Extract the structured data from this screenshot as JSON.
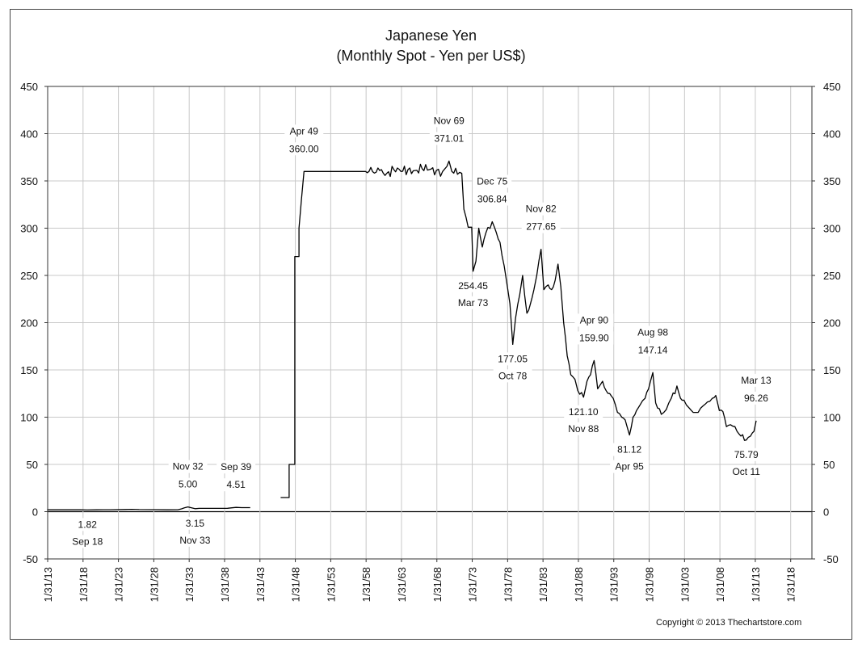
{
  "chart_data": {
    "type": "line",
    "title": "Japanese Yen",
    "subtitle": "(Monthly Spot - Yen per US$)",
    "xlabel": "",
    "ylabel": "",
    "ylim": [
      -50,
      450
    ],
    "y_ticks": [
      -50,
      0,
      50,
      100,
      150,
      200,
      250,
      300,
      350,
      400,
      450
    ],
    "x_range": [
      1913.08,
      2021.08
    ],
    "x_ticks": [
      {
        "year": 1913.08,
        "label": "1/31/13"
      },
      {
        "year": 1918.08,
        "label": "1/31/18"
      },
      {
        "year": 1923.08,
        "label": "1/31/23"
      },
      {
        "year": 1928.08,
        "label": "1/31/28"
      },
      {
        "year": 1933.08,
        "label": "1/31/33"
      },
      {
        "year": 1938.08,
        "label": "1/31/38"
      },
      {
        "year": 1943.08,
        "label": "1/31/43"
      },
      {
        "year": 1948.08,
        "label": "1/31/48"
      },
      {
        "year": 1953.08,
        "label": "1/31/53"
      },
      {
        "year": 1958.08,
        "label": "1/31/58"
      },
      {
        "year": 1963.08,
        "label": "1/31/63"
      },
      {
        "year": 1968.08,
        "label": "1/31/68"
      },
      {
        "year": 1973.08,
        "label": "1/31/73"
      },
      {
        "year": 1978.08,
        "label": "1/31/78"
      },
      {
        "year": 1983.08,
        "label": "1/31/83"
      },
      {
        "year": 1988.08,
        "label": "1/31/88"
      },
      {
        "year": 1993.08,
        "label": "1/31/93"
      },
      {
        "year": 1998.08,
        "label": "1/31/98"
      },
      {
        "year": 2003.08,
        "label": "1/31/03"
      },
      {
        "year": 2008.08,
        "label": "1/31/08"
      },
      {
        "year": 2013.08,
        "label": "1/31/13"
      },
      {
        "year": 2018.08,
        "label": "1/31/18"
      }
    ],
    "grid": true,
    "legend": "none",
    "series": [
      {
        "name": "Yen per US$",
        "color": "#000000",
        "segments": [
          [
            [
              1913.0,
              2.0
            ],
            [
              1917.7,
              1.95
            ],
            [
              1918.7,
              1.82
            ],
            [
              1920.0,
              1.95
            ],
            [
              1922.0,
              2.05
            ],
            [
              1924.0,
              2.3
            ],
            [
              1925.0,
              2.5
            ],
            [
              1926.0,
              2.2
            ],
            [
              1928.0,
              2.1
            ],
            [
              1930.0,
              2.0
            ],
            [
              1931.5,
              2.05
            ],
            [
              1932.0,
              3.0
            ],
            [
              1932.4,
              4.0
            ],
            [
              1932.9,
              5.0
            ],
            [
              1933.3,
              4.3
            ],
            [
              1933.9,
              3.15
            ],
            [
              1934.5,
              3.5
            ],
            [
              1935.5,
              3.5
            ],
            [
              1937.0,
              3.5
            ],
            [
              1938.5,
              3.6
            ],
            [
              1939.0,
              4.0
            ],
            [
              1939.7,
              4.51
            ],
            [
              1940.5,
              4.27
            ],
            [
              1941.7,
              4.27
            ]
          ],
          [
            [
              1946.0,
              15.0
            ],
            [
              1947.2,
              15.0
            ],
            [
              1947.2,
              50.0
            ],
            [
              1948.0,
              50.0
            ],
            [
              1948.0,
              270.0
            ],
            [
              1948.6,
              270.0
            ],
            [
              1948.6,
              300.0
            ],
            [
              1949.3,
              360.0
            ],
            [
              1958.0,
              360.0
            ],
            [
              1960.0,
              361.0
            ],
            [
              1961.0,
              358.0
            ],
            [
              1962.0,
              362.0
            ],
            [
              1963.0,
              360.0
            ],
            [
              1964.0,
              362.0
            ],
            [
              1965.0,
              361.0
            ],
            [
              1966.0,
              363.0
            ],
            [
              1967.0,
              362.0
            ],
            [
              1968.0,
              361.0
            ],
            [
              1968.9,
              360.0
            ],
            [
              1969.8,
              371.01
            ],
            [
              1970.2,
              360.0
            ],
            [
              1971.0,
              357.0
            ],
            [
              1971.6,
              358.0
            ],
            [
              1971.9,
              320.0
            ],
            [
              1972.5,
              301.0
            ],
            [
              1973.0,
              301.0
            ],
            [
              1973.2,
              254.45
            ],
            [
              1973.6,
              265.0
            ],
            [
              1974.0,
              300.0
            ],
            [
              1974.5,
              280.0
            ],
            [
              1975.0,
              295.0
            ],
            [
              1975.9,
              306.84
            ],
            [
              1976.5,
              295.0
            ],
            [
              1977.0,
              285.0
            ],
            [
              1977.6,
              260.0
            ],
            [
              1978.0,
              240.0
            ],
            [
              1978.4,
              220.0
            ],
            [
              1978.8,
              177.05
            ],
            [
              1979.2,
              205.0
            ],
            [
              1979.8,
              230.0
            ],
            [
              1980.2,
              250.0
            ],
            [
              1980.8,
              210.0
            ],
            [
              1981.3,
              220.0
            ],
            [
              1981.8,
              235.0
            ],
            [
              1982.2,
              250.0
            ],
            [
              1982.8,
              277.65
            ],
            [
              1983.2,
              235.0
            ],
            [
              1983.8,
              240.0
            ],
            [
              1984.3,
              235.0
            ],
            [
              1984.8,
              245.0
            ],
            [
              1985.2,
              262.0
            ],
            [
              1985.6,
              238.0
            ],
            [
              1986.0,
              200.0
            ],
            [
              1986.5,
              165.0
            ],
            [
              1987.0,
              145.0
            ],
            [
              1987.6,
              140.0
            ],
            [
              1988.0,
              128.0
            ],
            [
              1988.8,
              121.1
            ],
            [
              1989.3,
              138.0
            ],
            [
              1989.8,
              145.0
            ],
            [
              1990.3,
              159.9
            ],
            [
              1990.8,
              130.0
            ],
            [
              1991.5,
              138.0
            ],
            [
              1992.0,
              128.0
            ],
            [
              1992.5,
              125.0
            ],
            [
              1993.0,
              120.0
            ],
            [
              1993.6,
              105.0
            ],
            [
              1994.2,
              100.0
            ],
            [
              1994.7,
              97.0
            ],
            [
              1995.3,
              81.12
            ],
            [
              1995.8,
              100.0
            ],
            [
              1996.3,
              107.0
            ],
            [
              1996.8,
              113.0
            ],
            [
              1997.5,
              120.0
            ],
            [
              1998.0,
              130.0
            ],
            [
              1998.6,
              147.14
            ],
            [
              1999.0,
              115.0
            ],
            [
              1999.8,
              103.0
            ],
            [
              2000.5,
              108.0
            ],
            [
              2001.2,
              120.0
            ],
            [
              2002.0,
              133.0
            ],
            [
              2002.5,
              120.0
            ],
            [
              2003.0,
              118.0
            ],
            [
              2003.7,
              110.0
            ],
            [
              2004.3,
              105.0
            ],
            [
              2005.0,
              105.0
            ],
            [
              2005.7,
              112.0
            ],
            [
              2006.3,
              116.0
            ],
            [
              2007.0,
              120.0
            ],
            [
              2007.5,
              123.0
            ],
            [
              2008.0,
              107.0
            ],
            [
              2008.5,
              106.0
            ],
            [
              2009.0,
              90.0
            ],
            [
              2009.6,
              92.0
            ],
            [
              2010.2,
              90.0
            ],
            [
              2010.8,
              82.0
            ],
            [
              2011.8,
              75.79
            ],
            [
              2012.4,
              80.0
            ],
            [
              2012.9,
              85.0
            ],
            [
              2013.2,
              96.26
            ]
          ]
        ]
      }
    ],
    "annotations": [
      {
        "name": "sep18",
        "date": "Sep 18",
        "value": "1.82",
        "x": 1918.7,
        "y": 1.82,
        "pos": "below"
      },
      {
        "name": "nov32",
        "date": "Nov 32",
        "value": "5.00",
        "x": 1932.9,
        "y": 5.0,
        "pos": "above"
      },
      {
        "name": "nov33",
        "date": "Nov 33",
        "value": "3.15",
        "x": 1933.9,
        "y": 3.15,
        "pos": "below"
      },
      {
        "name": "sep39",
        "date": "Sep 39",
        "value": "4.51",
        "x": 1939.7,
        "y": 4.51,
        "pos": "above"
      },
      {
        "name": "apr49",
        "date": "Apr 49",
        "value": "360.00",
        "x": 1949.3,
        "y": 360.0,
        "pos": "above"
      },
      {
        "name": "nov69",
        "date": "Nov 69",
        "value": "371.01",
        "x": 1969.8,
        "y": 371.01,
        "pos": "above"
      },
      {
        "name": "mar73",
        "date": "Mar 73",
        "value": "254.45",
        "x": 1973.2,
        "y": 254.45,
        "pos": "below"
      },
      {
        "name": "dec75",
        "date": "Dec 75",
        "value": "306.84",
        "x": 1975.9,
        "y": 306.84,
        "pos": "above"
      },
      {
        "name": "oct78",
        "date": "Oct 78",
        "value": "177.05",
        "x": 1978.8,
        "y": 177.05,
        "pos": "below"
      },
      {
        "name": "nov82",
        "date": "Nov 82",
        "value": "277.65",
        "x": 1982.8,
        "y": 277.65,
        "pos": "above"
      },
      {
        "name": "nov88",
        "date": "Nov 88",
        "value": "121.10",
        "x": 1988.8,
        "y": 121.1,
        "pos": "below"
      },
      {
        "name": "apr90",
        "date": "Apr 90",
        "value": "159.90",
        "x": 1990.3,
        "y": 159.9,
        "pos": "above"
      },
      {
        "name": "apr95",
        "date": "Apr 95",
        "value": "81.12",
        "x": 1995.3,
        "y": 81.12,
        "pos": "below"
      },
      {
        "name": "aug98",
        "date": "Aug 98",
        "value": "147.14",
        "x": 1998.6,
        "y": 147.14,
        "pos": "above"
      },
      {
        "name": "oct11",
        "date": "Oct 11",
        "value": "75.79",
        "x": 2011.8,
        "y": 75.79,
        "pos": "below"
      },
      {
        "name": "mar13",
        "date": "Mar 13",
        "value": "96.26",
        "x": 2013.2,
        "y": 96.26,
        "pos": "above"
      }
    ],
    "copyright": "Copyright © 2013 Thechartstore.com"
  }
}
